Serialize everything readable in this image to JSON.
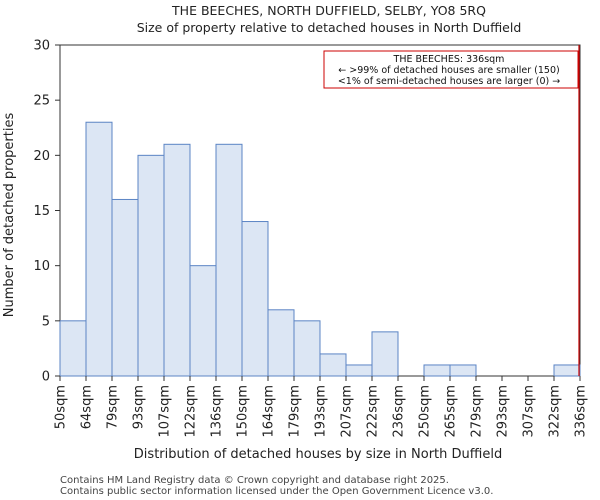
{
  "chart_data": {
    "type": "bar",
    "title": "THE BEECHES, NORTH DUFFIELD, SELBY, YO8 5RQ",
    "subtitle": "Size of property relative to detached houses in North Duffield",
    "xlabel": "Distribution of detached houses by size in North Duffield",
    "ylabel": "Number of detached properties",
    "ylim": [
      0,
      30
    ],
    "yticks": [
      0,
      5,
      10,
      15,
      20,
      25,
      30
    ],
    "bin_edges": [
      "50sqm",
      "64sqm",
      "79sqm",
      "93sqm",
      "107sqm",
      "122sqm",
      "136sqm",
      "150sqm",
      "164sqm",
      "179sqm",
      "193sqm",
      "207sqm",
      "222sqm",
      "236sqm",
      "250sqm",
      "265sqm",
      "279sqm",
      "293sqm",
      "307sqm",
      "322sqm",
      "336sqm"
    ],
    "values": [
      5,
      23,
      16,
      20,
      21,
      10,
      21,
      14,
      6,
      5,
      2,
      1,
      4,
      0,
      1,
      1,
      0,
      0,
      0,
      1
    ],
    "bar_color": "#dce6f4",
    "bar_edge_color": "#5b84c4",
    "marker": {
      "value": "336sqm",
      "color": "#cc0000",
      "annotation": [
        "THE BEECHES: 336sqm",
        "← >99% of detached houses are smaller (150)",
        "<1% of semi-detached houses are larger (0) →"
      ]
    }
  },
  "footer": {
    "line1": "Contains HM Land Registry data © Crown copyright and database right 2025.",
    "line2": "Contains public sector information licensed under the Open Government Licence v3.0."
  }
}
